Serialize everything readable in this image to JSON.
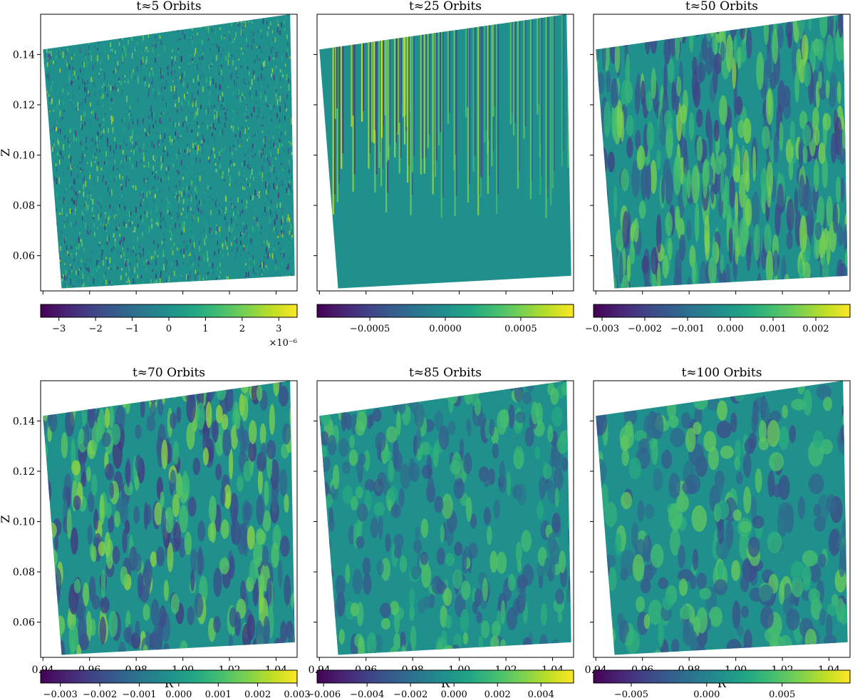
{
  "chart_data": [
    {
      "type": "heatmap",
      "title": "t≈5 Orbits",
      "ylabel": "Z",
      "xlabel": "",
      "xlim": [
        0.939,
        1.049
      ],
      "ylim": [
        0.046,
        0.156
      ],
      "xticks": [
        0.94,
        0.96,
        0.98,
        1.0,
        1.02,
        1.04
      ],
      "xtick_labels": [
        "",
        "",
        "",
        "",
        "",
        ""
      ],
      "yticks": [
        0.06,
        0.08,
        0.1,
        0.12,
        0.14
      ],
      "ytick_labels": [
        "0.06",
        "0.08",
        "0.10",
        "0.12",
        "0.14"
      ],
      "colorbar": {
        "min": -3.5e-06,
        "max": 3.5e-06,
        "ticks": [
          -3e-06,
          -2e-06,
          -1e-06,
          0,
          1e-06,
          2e-06,
          3e-06
        ],
        "tick_labels": [
          "−3",
          "−2",
          "−1",
          "0",
          "1",
          "2",
          "3"
        ],
        "offset_label": "×10⁻⁶"
      },
      "pattern": "fine-noise",
      "colormap": "viridis"
    },
    {
      "type": "heatmap",
      "title": "t≈25 Orbits",
      "ylabel": "",
      "xlabel": "",
      "xlim": [
        0.939,
        1.049
      ],
      "ylim": [
        0.046,
        0.156
      ],
      "xticks": [
        0.94,
        0.96,
        0.98,
        1.0,
        1.02,
        1.04
      ],
      "xtick_labels": [
        "",
        "",
        "",
        "",
        "",
        ""
      ],
      "yticks": [
        0.06,
        0.08,
        0.1,
        0.12,
        0.14
      ],
      "ytick_labels": [
        "",
        "",
        "",
        "",
        ""
      ],
      "colorbar": {
        "min": -0.00085,
        "max": 0.00085,
        "ticks": [
          -0.0005,
          0.0,
          0.0005
        ],
        "tick_labels": [
          "−0.0005",
          "0.0000",
          "0.0005"
        ],
        "offset_label": ""
      },
      "pattern": "vertical-stripes",
      "colormap": "viridis"
    },
    {
      "type": "heatmap",
      "title": "t≈50 Orbits",
      "ylabel": "",
      "xlabel": "",
      "xlim": [
        0.939,
        1.049
      ],
      "ylim": [
        0.046,
        0.156
      ],
      "xticks": [
        0.94,
        0.96,
        0.98,
        1.0,
        1.02,
        1.04
      ],
      "xtick_labels": [
        "",
        "",
        "",
        "",
        "",
        ""
      ],
      "yticks": [
        0.06,
        0.08,
        0.1,
        0.12,
        0.14
      ],
      "ytick_labels": [
        "",
        "",
        "",
        "",
        ""
      ],
      "colorbar": {
        "min": -0.0032,
        "max": 0.0028,
        "ticks": [
          -0.003,
          -0.002,
          -0.001,
          0.0,
          0.001,
          0.002
        ],
        "tick_labels": [
          "−0.003",
          "−0.002",
          "−0.001",
          "0.000",
          "0.001",
          "0.002"
        ],
        "offset_label": ""
      },
      "pattern": "turbulent-stripes",
      "colormap": "viridis"
    },
    {
      "type": "heatmap",
      "title": "t≈70 Orbits",
      "ylabel": "Z",
      "xlabel": "R",
      "xlim": [
        0.939,
        1.049
      ],
      "ylim": [
        0.046,
        0.156
      ],
      "xticks": [
        0.94,
        0.96,
        0.98,
        1.0,
        1.02,
        1.04
      ],
      "xtick_labels": [
        "0.94",
        "0.96",
        "0.98",
        "1.00",
        "1.02",
        "1.04"
      ],
      "yticks": [
        0.06,
        0.08,
        0.1,
        0.12,
        0.14
      ],
      "ytick_labels": [
        "0.06",
        "0.08",
        "0.10",
        "0.12",
        "0.14"
      ],
      "colorbar": {
        "min": -0.0035,
        "max": 0.003,
        "ticks": [
          -0.003,
          -0.002,
          -0.001,
          0.0,
          0.001,
          0.002,
          0.003
        ],
        "tick_labels": [
          "−0.003",
          "−0.002",
          "−0.001",
          "0.000",
          "0.001",
          "0.002",
          "0.003"
        ],
        "offset_label": ""
      },
      "pattern": "turbulent",
      "colormap": "viridis"
    },
    {
      "type": "heatmap",
      "title": "t≈85 Orbits",
      "ylabel": "",
      "xlabel": "R",
      "xlim": [
        0.939,
        1.049
      ],
      "ylim": [
        0.046,
        0.156
      ],
      "xticks": [
        0.94,
        0.96,
        0.98,
        1.0,
        1.02,
        1.04
      ],
      "xtick_labels": [
        "0.94",
        "0.96",
        "0.98",
        "1.00",
        "1.02",
        "1.04"
      ],
      "yticks": [
        0.06,
        0.08,
        0.1,
        0.12,
        0.14
      ],
      "ytick_labels": [
        "",
        "",
        "",
        "",
        ""
      ],
      "colorbar": {
        "min": -0.0063,
        "max": 0.0055,
        "ticks": [
          -0.006,
          -0.004,
          -0.002,
          0.0,
          0.002,
          0.004
        ],
        "tick_labels": [
          "−0.006",
          "−0.004",
          "−0.002",
          "0.000",
          "0.002",
          "0.004"
        ],
        "offset_label": ""
      },
      "pattern": "turbulent-soft",
      "colormap": "viridis"
    },
    {
      "type": "heatmap",
      "title": "t≈100 Orbits",
      "ylabel": "",
      "xlabel": "R",
      "xlim": [
        0.939,
        1.049
      ],
      "ylim": [
        0.046,
        0.156
      ],
      "xticks": [
        0.94,
        0.96,
        0.98,
        1.0,
        1.02,
        1.04
      ],
      "xtick_labels": [
        "0.94",
        "0.96",
        "0.98",
        "1.00",
        "1.02",
        "1.04"
      ],
      "yticks": [
        0.06,
        0.08,
        0.1,
        0.12,
        0.14
      ],
      "ytick_labels": [
        "",
        "",
        "",
        "",
        ""
      ],
      "colorbar": {
        "min": -0.0075,
        "max": 0.0095,
        "ticks": [
          -0.005,
          0.0,
          0.005
        ],
        "tick_labels": [
          "−0.005",
          "0.000",
          "0.005"
        ],
        "offset_label": ""
      },
      "pattern": "turbulent-large",
      "colormap": "viridis"
    }
  ]
}
